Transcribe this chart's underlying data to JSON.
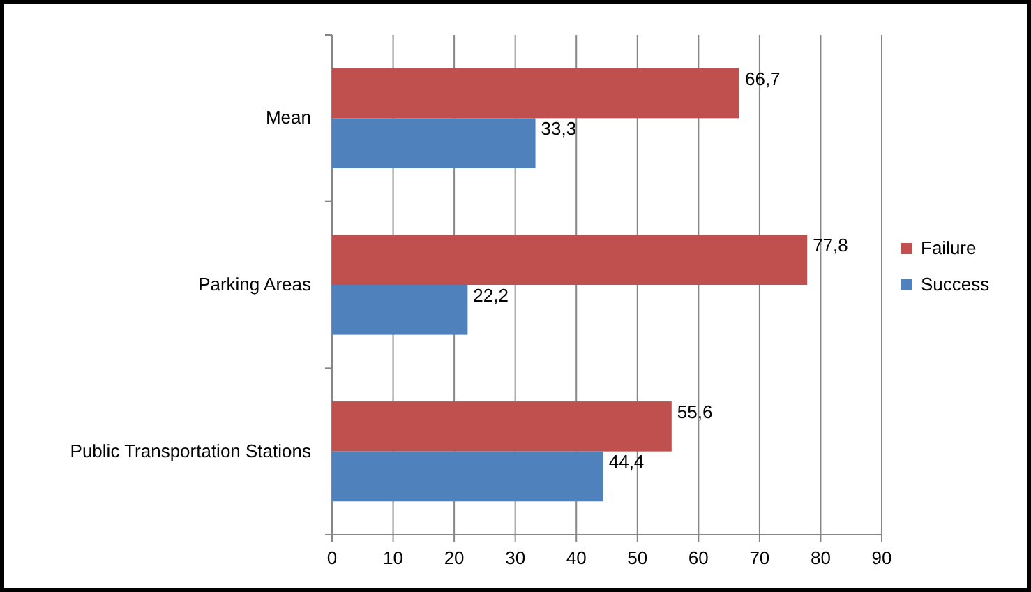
{
  "chart_data": {
    "type": "bar",
    "orientation": "horizontal",
    "categories": [
      "Mean",
      "Parking Areas",
      "Public Transportation Stations"
    ],
    "series": [
      {
        "name": "Failure",
        "color": "#c0504d",
        "values": [
          66.7,
          77.8,
          55.6
        ],
        "value_labels": [
          "66,7",
          "77,8",
          "55,6"
        ]
      },
      {
        "name": "Success",
        "color": "#4f81bd",
        "values": [
          33.3,
          22.2,
          44.4
        ],
        "value_labels": [
          "33,3",
          "22,2",
          "44,4"
        ]
      }
    ],
    "xlim": [
      0,
      90
    ],
    "xticks": [
      0,
      10,
      20,
      30,
      40,
      50,
      60,
      70,
      80,
      90
    ],
    "grid": "x",
    "legend": "right"
  }
}
